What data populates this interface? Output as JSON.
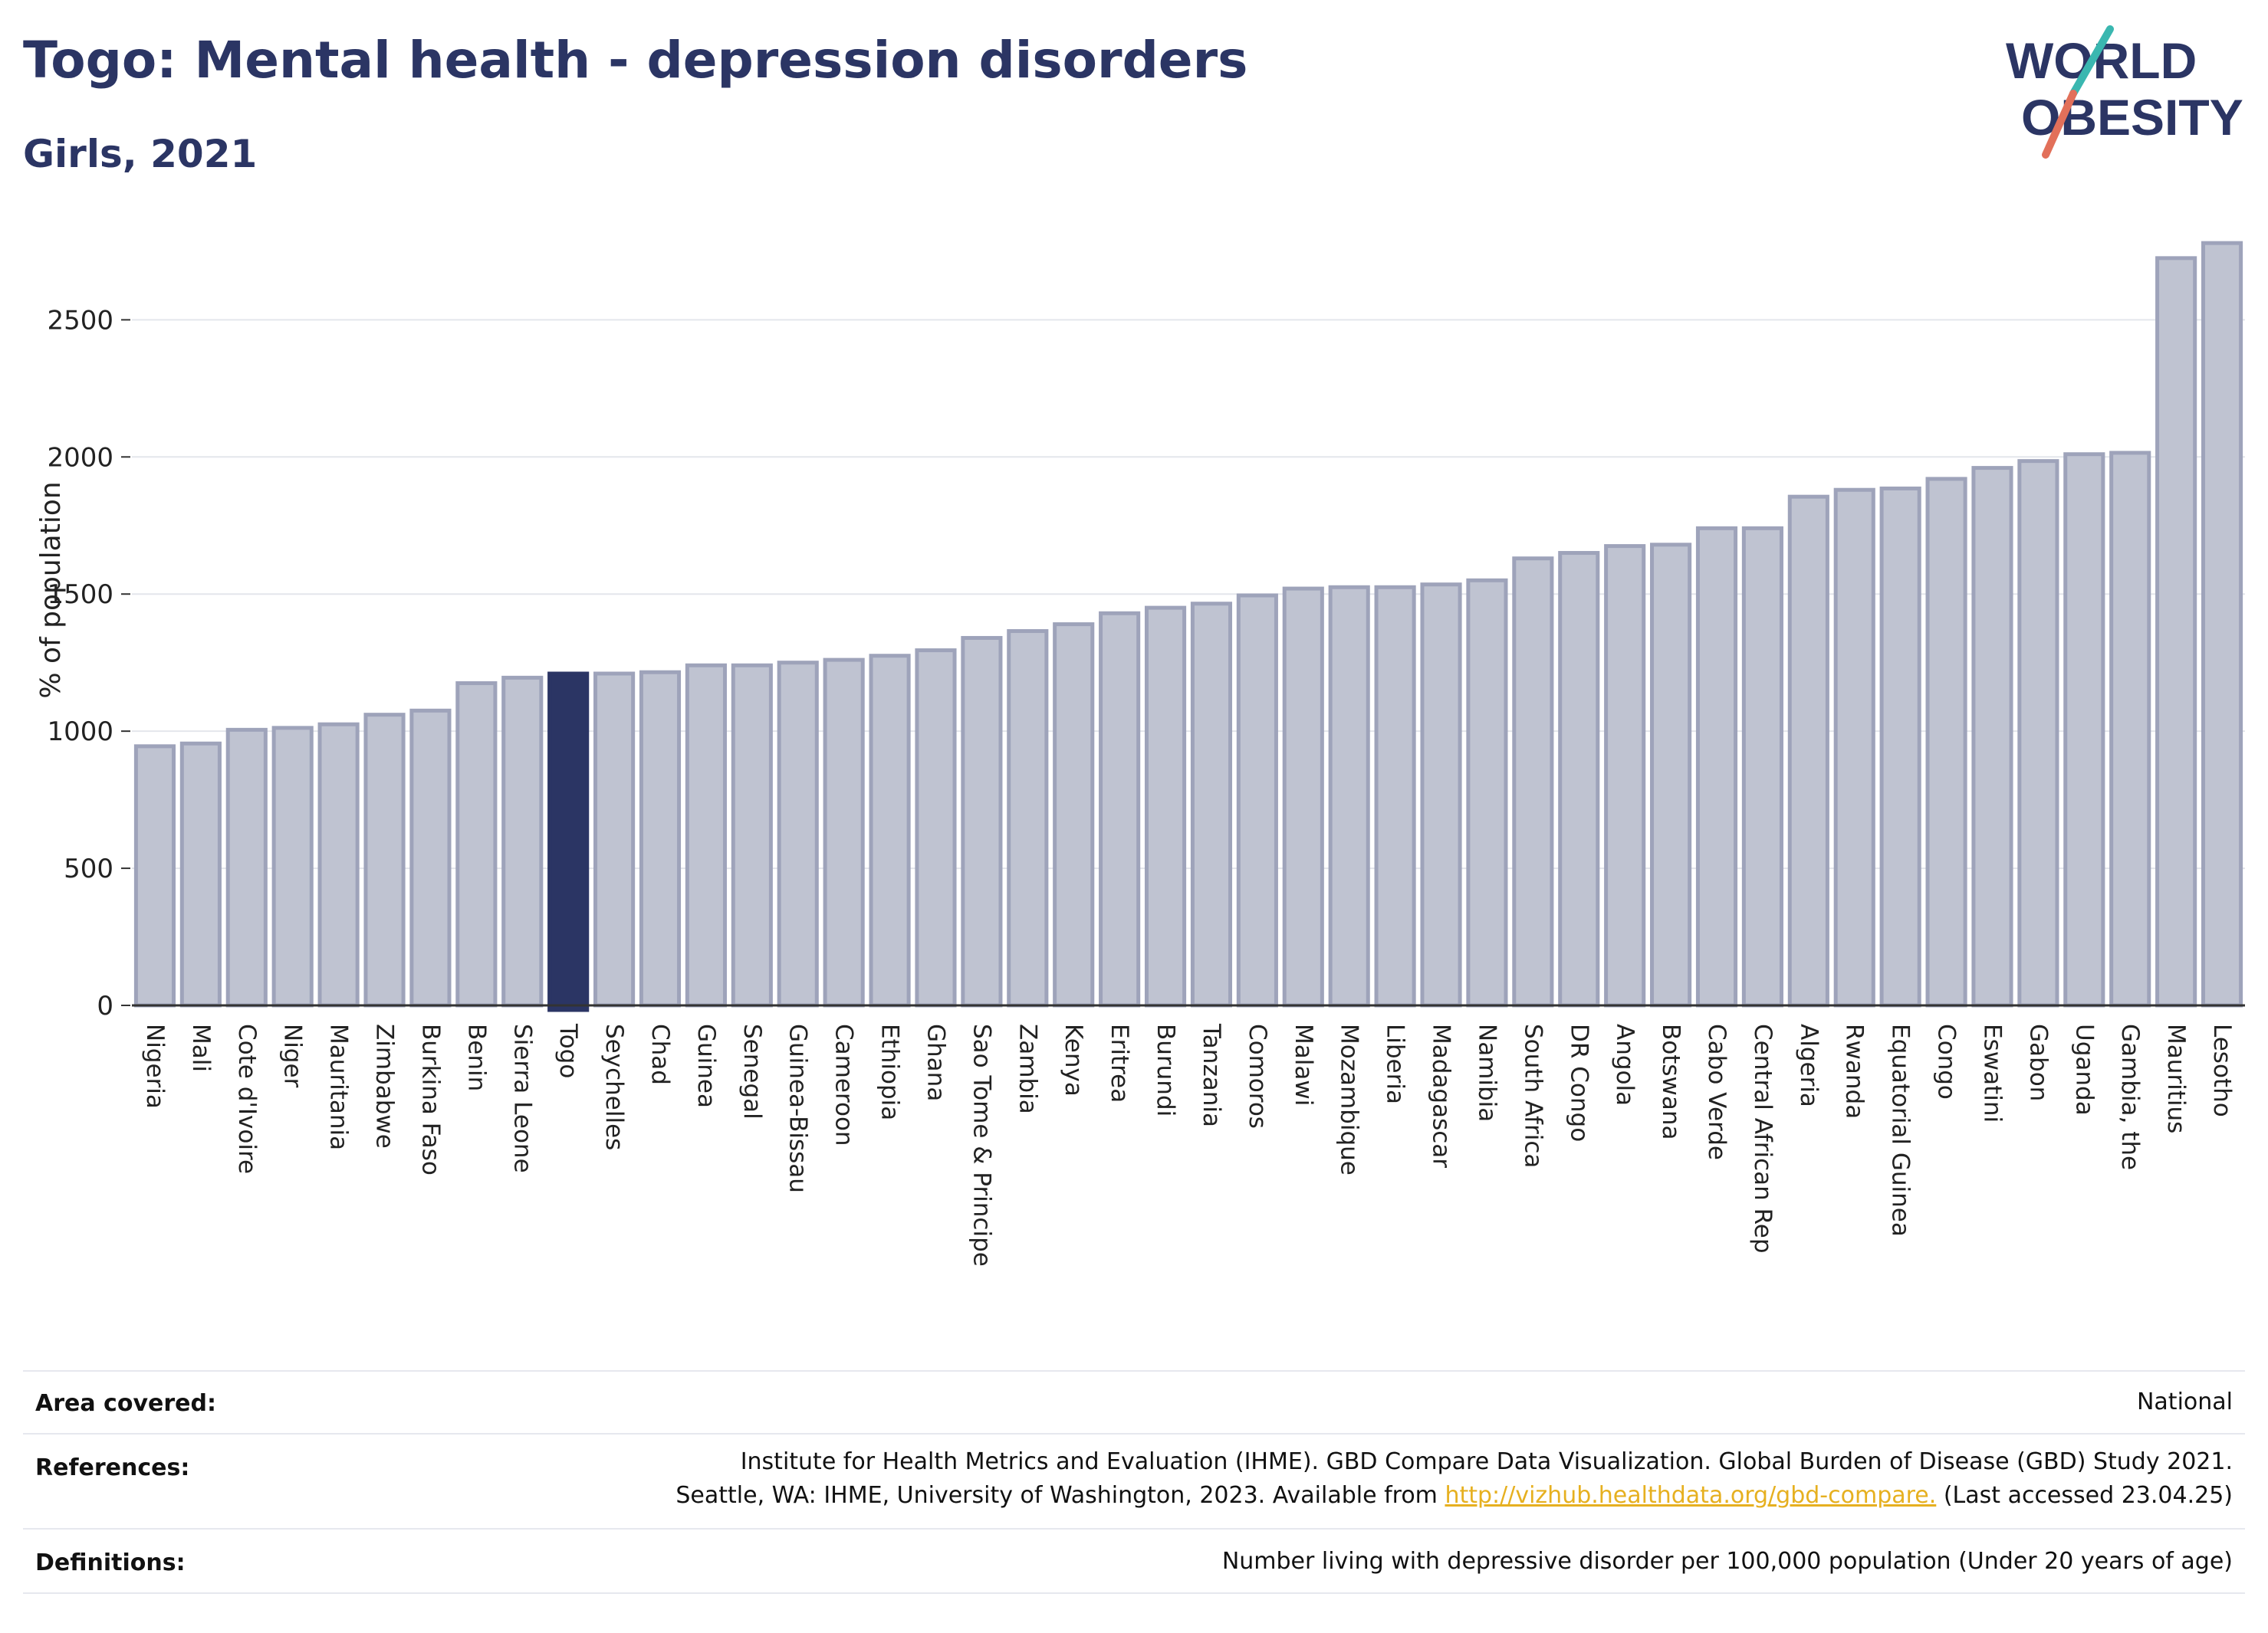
{
  "header": {
    "title": "Togo: Mental health - depression disorders",
    "subtitle": "Girls, 2021"
  },
  "logo": {
    "line1": "WORLD",
    "line2": "OBESITY",
    "colors": {
      "text": "#2b3564",
      "slash_top": "#3ab7b0",
      "slash_bottom": "#e2705a"
    }
  },
  "chart_data": {
    "type": "bar",
    "ylabel": "% of population",
    "ylim": [
      0,
      2800
    ],
    "yticks": [
      0,
      500,
      1000,
      1500,
      2000,
      2500
    ],
    "grid": true,
    "highlight": "Togo",
    "colors": {
      "bar": "#bfc3d1",
      "bar_edge": "#9ea3ba",
      "highlight": "#2b3564"
    },
    "categories": [
      "Nigeria",
      "Mali",
      "Cote d'Ivoire",
      "Niger",
      "Mauritania",
      "Zimbabwe",
      "Burkina Faso",
      "Benin",
      "Sierra Leone",
      "Togo",
      "Seychelles",
      "Chad",
      "Guinea",
      "Senegal",
      "Guinea-Bissau",
      "Cameroon",
      "Ethiopia",
      "Ghana",
      "Sao Tome & Principe",
      "Zambia",
      "Kenya",
      "Eritrea",
      "Burundi",
      "Tanzania",
      "Comoros",
      "Malawi",
      "Mozambique",
      "Liberia",
      "Madagascar",
      "Namibia",
      "South Africa",
      "DR Congo",
      "Angola",
      "Botswana",
      "Cabo Verde",
      "Central African Rep",
      "Algeria",
      "Rwanda",
      "Equatorial Guinea",
      "Congo",
      "Eswatini",
      "Gabon",
      "Uganda",
      "Gambia, the",
      "Mauritius",
      "Lesotho"
    ],
    "values": [
      945,
      955,
      1005,
      1012,
      1025,
      1060,
      1075,
      1175,
      1195,
      1210,
      1210,
      1215,
      1240,
      1240,
      1250,
      1260,
      1275,
      1295,
      1340,
      1365,
      1390,
      1430,
      1450,
      1465,
      1495,
      1520,
      1525,
      1525,
      1535,
      1550,
      1630,
      1650,
      1675,
      1680,
      1740,
      1740,
      1855,
      1880,
      1885,
      1920,
      1960,
      1985,
      2010,
      2015,
      2725,
      2780
    ]
  },
  "info": {
    "area_label": "Area covered:",
    "area_value": "National",
    "references_label": "References:",
    "references_line1": "Institute for Health Metrics and Evaluation (IHME). GBD Compare Data Visualization. Global Burden of Disease (GBD) Study 2021.",
    "references_line2_pre": "Seattle, WA: IHME, University of Washington, 2023. Available from ",
    "references_link": "http://vizhub.healthdata.org/gbd-compare.",
    "references_line2_post": " (Last accessed 23.04.25)",
    "definitions_label": "Definitions:",
    "definitions_value": "Number living with depressive disorder per 100,000 population (Under 20 years of age)"
  }
}
